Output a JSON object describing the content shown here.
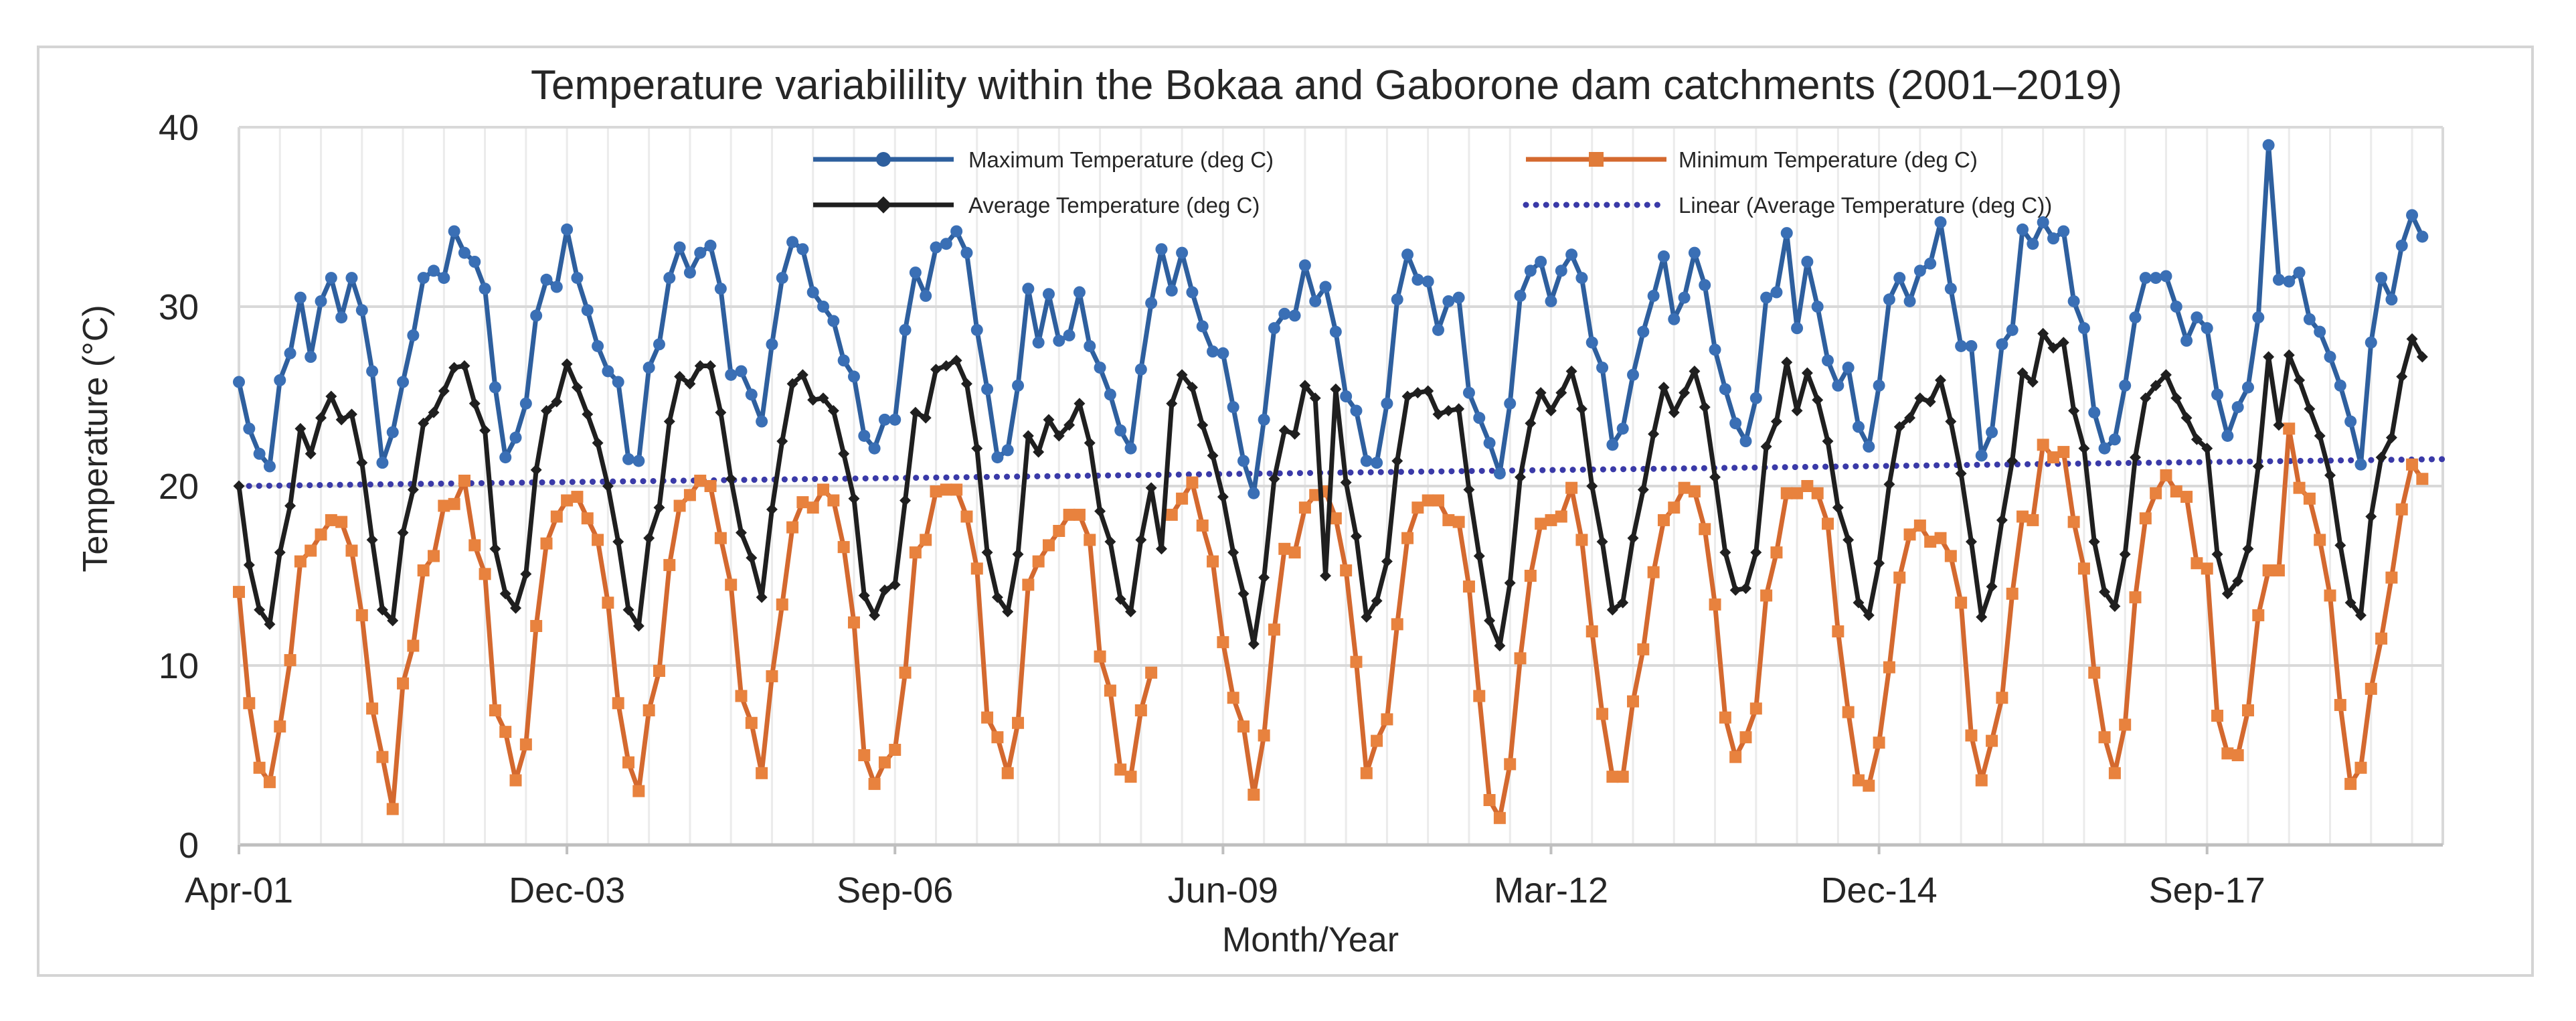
{
  "chart_data": {
    "type": "line",
    "title": "Temperature variabilility within the Bokaa and Gaborone dam catchments (2001–2019)",
    "xlabel": "Month/Year",
    "ylabel": "Temperature (°C)",
    "ylim": [
      0,
      40
    ],
    "yticks": [
      0,
      10,
      20,
      30,
      40
    ],
    "xlim": [
      0,
      215
    ],
    "xtick_labels": [
      "Apr-01",
      "Dec-03",
      "Sep-06",
      "Jun-09",
      "Mar-12",
      "Dec-14",
      "Sep-17"
    ],
    "xtick_indices": [
      0,
      32,
      64,
      96,
      128,
      160,
      192
    ],
    "grid": true,
    "legend_position": "top-center",
    "series": [
      {
        "name": "Maximum Temperature (deg C)",
        "color": "#2e5f9e",
        "marker": "circle",
        "values": [
          25.8,
          23.2,
          21.8,
          21.1,
          25.9,
          27.4,
          30.5,
          27.2,
          30.3,
          31.6,
          29.4,
          31.6,
          29.8,
          26.4,
          21.3,
          23.0,
          25.8,
          28.4,
          31.6,
          32.0,
          31.6,
          34.2,
          33.0,
          32.5,
          31.0,
          25.5,
          21.6,
          22.7,
          24.6,
          29.5,
          31.5,
          31.1,
          34.3,
          31.6,
          29.8,
          27.8,
          26.4,
          25.8,
          21.5,
          21.4,
          26.6,
          27.9,
          31.6,
          33.3,
          31.9,
          33.0,
          33.4,
          31.0,
          26.2,
          26.4,
          25.1,
          23.6,
          27.9,
          31.6,
          33.6,
          33.2,
          30.8,
          30.0,
          29.2,
          27.0,
          26.1,
          22.8,
          22.1,
          23.7,
          23.7,
          28.7,
          31.9,
          30.6,
          33.3,
          33.5,
          34.2,
          33.0,
          28.7,
          25.4,
          21.6,
          22.0,
          25.6,
          31.0,
          28.0,
          30.7,
          28.1,
          28.4,
          30.8,
          27.8,
          26.6,
          25.1,
          23.1,
          22.1,
          26.5,
          30.2,
          33.2,
          30.9,
          33.0,
          30.8,
          28.9,
          27.5,
          27.4,
          24.4,
          21.4,
          19.6,
          23.7,
          28.8,
          29.6,
          29.5,
          32.3,
          30.3,
          31.1,
          28.6,
          25.0,
          24.2,
          21.4,
          21.3,
          24.6,
          30.4,
          32.9,
          31.5,
          31.4,
          28.7,
          30.3,
          30.5,
          25.2,
          23.8,
          22.4,
          20.7,
          24.6,
          30.6,
          32.0,
          32.5,
          30.3,
          32.0,
          32.9,
          31.6,
          28.0,
          26.6,
          22.3,
          23.2,
          26.2,
          28.6,
          30.6,
          32.8,
          29.3,
          30.5,
          33.0,
          31.2,
          27.6,
          25.4,
          23.5,
          22.5,
          24.9,
          30.5,
          30.8,
          34.1,
          28.8,
          32.5,
          30.0,
          27.0,
          25.6,
          26.6,
          23.3,
          22.2,
          25.6,
          30.4,
          31.6,
          30.3,
          32.0,
          32.4,
          34.7,
          31.0,
          27.8,
          27.8,
          21.7,
          23.0,
          27.9,
          28.7,
          34.3,
          33.5,
          34.7,
          33.8,
          34.2,
          30.3,
          28.8,
          24.1,
          22.1,
          22.6,
          25.6,
          29.4,
          31.6,
          31.6,
          31.7,
          30.0,
          28.1,
          29.4,
          28.8,
          25.1,
          22.8,
          24.4,
          25.5,
          29.4,
          39.0,
          31.5,
          31.4,
          31.9,
          29.3,
          28.6,
          27.2,
          25.6,
          23.6,
          21.2,
          28.0,
          31.6,
          30.4,
          33.4,
          35.1,
          33.9
        ]
      },
      {
        "name": "Minimum Temperature (deg C)",
        "color": "#d4692f",
        "marker": "square",
        "values": [
          14.1,
          7.9,
          4.3,
          3.5,
          6.6,
          10.3,
          15.8,
          16.4,
          17.3,
          18.1,
          18.0,
          16.4,
          12.8,
          7.6,
          4.9,
          2.0,
          9.0,
          11.1,
          15.3,
          16.1,
          18.9,
          19.0,
          20.3,
          16.7,
          15.1,
          7.5,
          6.3,
          3.6,
          5.6,
          12.2,
          16.8,
          18.3,
          19.2,
          19.4,
          18.2,
          17.0,
          13.5,
          7.9,
          4.6,
          3.0,
          7.5,
          9.7,
          15.6,
          18.9,
          19.5,
          20.3,
          20.0,
          17.1,
          14.5,
          8.3,
          6.8,
          4.0,
          9.4,
          13.4,
          17.7,
          19.1,
          18.8,
          19.8,
          19.2,
          16.6,
          12.4,
          5.0,
          3.4,
          4.6,
          5.3,
          9.6,
          16.3,
          17.0,
          19.7,
          19.8,
          19.8,
          18.3,
          15.4,
          7.1,
          6.0,
          4.0,
          6.8,
          14.5,
          15.8,
          16.7,
          17.5,
          18.4,
          18.4,
          17.0,
          10.5,
          8.6,
          4.2,
          3.8,
          7.5,
          9.6,
          null,
          18.4,
          19.3,
          20.2,
          17.8,
          15.8,
          11.3,
          8.2,
          6.6,
          2.8,
          6.1,
          12.0,
          16.5,
          16.3,
          18.8,
          19.5,
          19.7,
          18.2,
          15.3,
          10.2,
          4.0,
          5.8,
          7.0,
          12.3,
          17.1,
          18.8,
          19.2,
          19.2,
          18.1,
          18.0,
          14.4,
          8.3,
          2.5,
          1.5,
          4.5,
          10.4,
          15.0,
          17.9,
          18.1,
          18.3,
          19.9,
          17.0,
          11.9,
          7.3,
          3.8,
          3.8,
          8.0,
          10.9,
          15.2,
          18.1,
          18.8,
          19.9,
          19.7,
          17.6,
          13.4,
          7.1,
          4.9,
          6.0,
          7.6,
          13.9,
          16.3,
          19.6,
          19.6,
          20.0,
          19.6,
          17.9,
          11.9,
          7.4,
          3.6,
          3.3,
          5.7,
          9.9,
          14.9,
          17.3,
          17.8,
          16.9,
          17.1,
          16.1,
          13.5,
          6.1,
          3.6,
          5.8,
          8.2,
          14.0,
          18.3,
          18.1,
          22.3,
          21.6,
          21.9,
          18.0,
          15.4,
          9.6,
          6.0,
          4.0,
          6.7,
          13.8,
          18.2,
          19.6,
          20.6,
          19.7,
          19.4,
          15.7,
          15.4,
          7.2,
          5.1,
          5.0,
          7.5,
          12.8,
          15.3,
          15.3,
          23.2,
          19.9,
          19.3,
          17.0,
          13.9,
          7.8,
          3.4,
          4.3,
          8.7,
          11.5,
          14.9,
          18.7,
          21.2,
          20.4
        ]
      },
      {
        "name": "Average Temperature (deg C)",
        "color": "#1f1f1f",
        "marker": "diamond",
        "values": [
          20.0,
          15.6,
          13.1,
          12.3,
          16.3,
          18.9,
          23.2,
          21.8,
          23.8,
          25.0,
          23.7,
          24.0,
          21.3,
          17.0,
          13.1,
          12.5,
          17.4,
          19.8,
          23.5,
          24.1,
          25.3,
          26.6,
          26.7,
          24.6,
          23.1,
          16.5,
          14.0,
          13.2,
          15.1,
          20.9,
          24.2,
          24.7,
          26.8,
          25.5,
          24.0,
          22.4,
          20.0,
          16.9,
          13.1,
          12.2,
          17.1,
          18.8,
          23.6,
          26.1,
          25.7,
          26.7,
          26.7,
          24.1,
          20.4,
          17.4,
          16.0,
          13.8,
          18.7,
          22.5,
          25.7,
          26.2,
          24.8,
          24.9,
          24.2,
          21.8,
          19.3,
          13.9,
          12.8,
          14.2,
          14.5,
          19.2,
          24.1,
          23.8,
          26.5,
          26.7,
          27.0,
          25.7,
          22.1,
          16.3,
          13.8,
          13.0,
          16.2,
          22.8,
          21.9,
          23.7,
          22.8,
          23.4,
          24.6,
          22.4,
          18.6,
          16.9,
          13.7,
          13.0,
          17.0,
          19.9,
          16.5,
          24.6,
          26.2,
          25.5,
          23.4,
          21.7,
          19.4,
          16.3,
          14.0,
          11.2,
          14.9,
          20.4,
          23.1,
          22.9,
          25.6,
          24.9,
          15.0,
          25.4,
          20.2,
          17.2,
          12.7,
          13.6,
          15.8,
          21.4,
          25.0,
          25.2,
          25.3,
          24.0,
          24.2,
          24.3,
          19.8,
          16.1,
          12.5,
          11.1,
          14.6,
          20.5,
          23.5,
          25.2,
          24.2,
          25.2,
          26.4,
          24.3,
          20.0,
          16.9,
          13.1,
          13.5,
          17.1,
          19.8,
          22.9,
          25.5,
          24.1,
          25.2,
          26.4,
          24.4,
          20.5,
          16.3,
          14.2,
          14.3,
          16.3,
          22.2,
          23.6,
          26.9,
          24.2,
          26.3,
          24.8,
          22.5,
          18.8,
          17.0,
          13.5,
          12.8,
          15.7,
          20.1,
          23.3,
          23.8,
          24.9,
          24.7,
          25.9,
          23.6,
          20.7,
          16.9,
          12.7,
          14.4,
          18.1,
          21.4,
          26.3,
          25.8,
          28.5,
          27.7,
          28.0,
          24.2,
          22.1,
          16.9,
          14.1,
          13.3,
          16.2,
          21.6,
          24.9,
          25.6,
          26.2,
          24.9,
          23.8,
          22.6,
          22.1,
          16.2,
          14.0,
          14.7,
          16.5,
          21.1,
          27.2,
          23.4,
          27.3,
          25.9,
          24.3,
          22.8,
          20.6,
          16.7,
          13.5,
          12.8,
          18.3,
          21.6,
          22.7,
          26.1,
          28.2,
          27.2
        ]
      },
      {
        "name": "Linear (Average Temperature (deg C))",
        "color": "#3a3aa8",
        "style": "dotted",
        "values": [
          20.0,
          21.5
        ]
      }
    ]
  }
}
